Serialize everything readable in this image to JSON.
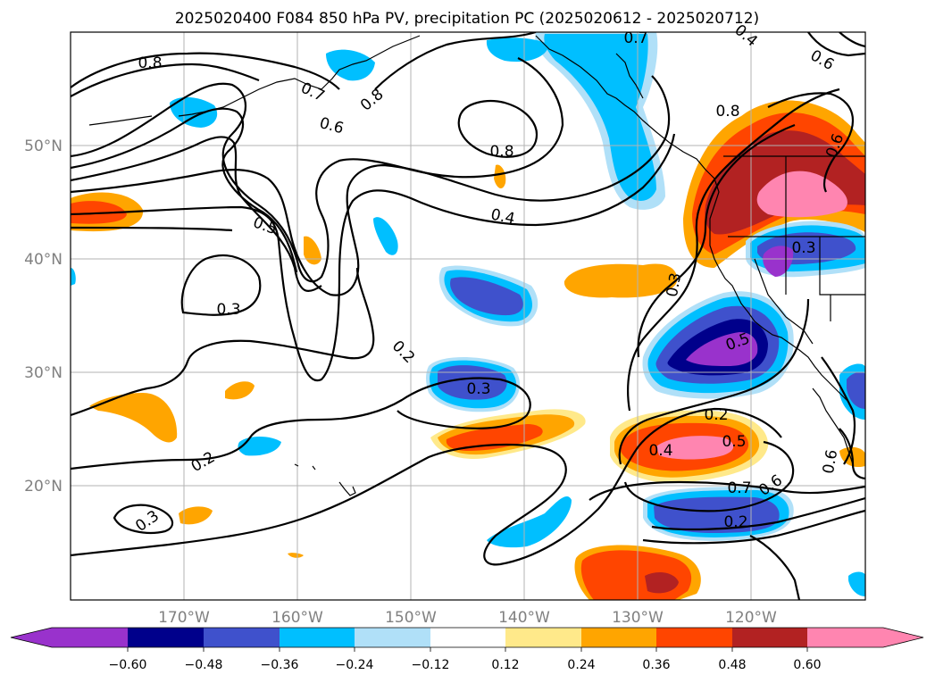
{
  "title": "2025020400 F084 850 hPa PV, precipitation PC (2025020612 - 2025020712)",
  "map": {
    "lon_labels": [
      "170°W",
      "160°W",
      "150°W",
      "140°W",
      "130°W",
      "120°W"
    ],
    "lat_labels": [
      "50°N",
      "40°N",
      "30°N",
      "20°N"
    ],
    "grid": true
  },
  "pv_contour_labels": [
    {
      "text": "0.8"
    },
    {
      "text": "0.7"
    },
    {
      "text": "0.6"
    },
    {
      "text": "0.8"
    },
    {
      "text": "0.8"
    },
    {
      "text": "0.8"
    },
    {
      "text": "0.6"
    },
    {
      "text": "0.6"
    },
    {
      "text": "0.5"
    },
    {
      "text": "0.4"
    },
    {
      "text": "0.3"
    },
    {
      "text": "0.3"
    },
    {
      "text": "0.2"
    },
    {
      "text": "0.3"
    },
    {
      "text": "0.2"
    },
    {
      "text": "0.3"
    },
    {
      "text": "0.3"
    },
    {
      "text": "0.5"
    },
    {
      "text": "0.2"
    },
    {
      "text": "0.4"
    },
    {
      "text": "0.5"
    },
    {
      "text": "0.7"
    },
    {
      "text": "0.6"
    },
    {
      "text": "0.2"
    },
    {
      "text": "0.6"
    },
    {
      "text": "0.7"
    },
    {
      "text": "0.4"
    }
  ],
  "colorbar": {
    "tick_labels": [
      "−0.60",
      "−0.48",
      "−0.36",
      "−0.24",
      "−0.12",
      "0.12",
      "0.24",
      "0.36",
      "0.48",
      "0.60"
    ],
    "colors": [
      "#9932cc",
      "#00008b",
      "#3f51cc",
      "#00bfff",
      "#b0e0f8",
      "#ffffff",
      "#ffe98a",
      "#ffa500",
      "#ff4500",
      "#b22222",
      "#ff85b0"
    ],
    "extend": "both"
  }
}
